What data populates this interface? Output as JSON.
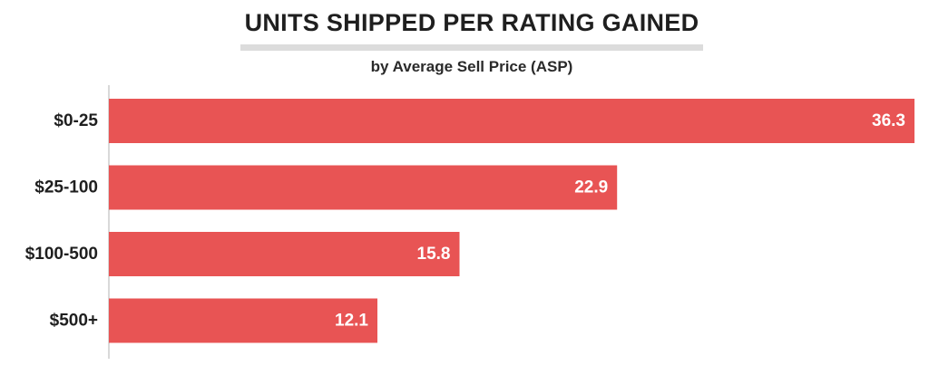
{
  "chart_data": {
    "type": "bar",
    "orientation": "horizontal",
    "title": "UNITS SHIPPED PER RATING GAINED",
    "subtitle": "by Average Sell Price (ASP)",
    "categories": [
      "$0-25",
      "$25-100",
      "$100-500",
      "$500+"
    ],
    "values": [
      36.3,
      22.9,
      15.8,
      12.1
    ],
    "value_labels": [
      "36.3",
      "22.9",
      "15.8",
      "12.1"
    ],
    "xlim": [
      0,
      36.3
    ],
    "grid": false,
    "legend": "none",
    "bar_color": "#e85454",
    "axis_color": "#d9d9d9",
    "label_color": "#1f1f1f",
    "value_label_color": "#ffffff"
  }
}
